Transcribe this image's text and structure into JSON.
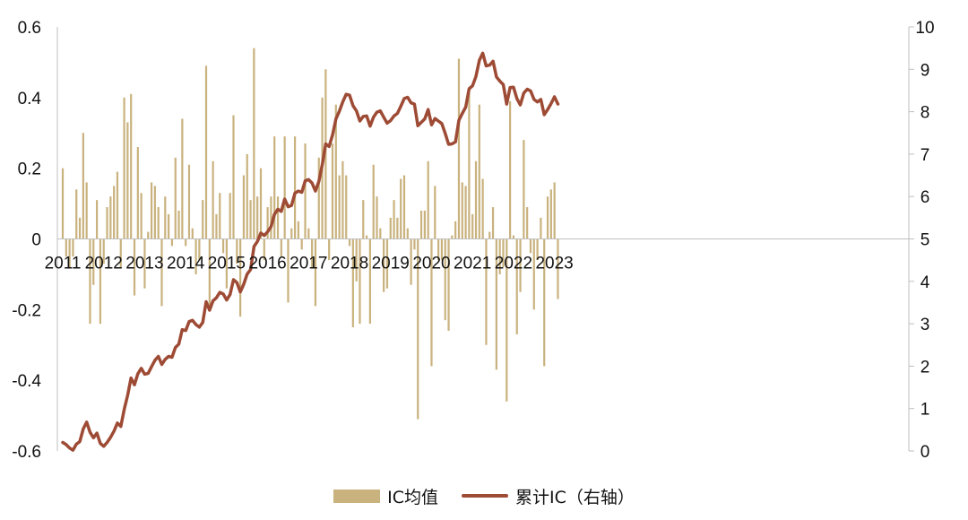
{
  "chart_data": {
    "type": "bar+line",
    "x_tick_labels": [
      "2011",
      "2012",
      "2013",
      "2014",
      "2015",
      "2016",
      "2017",
      "2018",
      "2019",
      "2020",
      "2021",
      "2022",
      "2023"
    ],
    "y_left": {
      "range": [
        -0.6,
        0.6
      ],
      "ticks": [
        "0.6",
        "0.4",
        "0.2",
        "0",
        "-0.2",
        "-0.4",
        "-0.6"
      ]
    },
    "y_right": {
      "range": [
        0,
        10
      ],
      "ticks": [
        "10",
        "9",
        "8",
        "7",
        "6",
        "5",
        "4",
        "3",
        "2",
        "1",
        "0"
      ]
    },
    "start_period": "2011-01",
    "legend_position": "bottom",
    "colors": {
      "bars": "#c9b27e",
      "line": "#9e4b35",
      "axis": "#bfbfbf"
    },
    "series": [
      {
        "name": "IC均值",
        "type": "bar",
        "axis": "left",
        "values": [
          0.2,
          -0.05,
          -0.08,
          -0.05,
          0.14,
          0.06,
          0.3,
          0.16,
          -0.24,
          -0.13,
          0.11,
          -0.24,
          -0.07,
          0.09,
          0.12,
          0.15,
          0.19,
          -0.08,
          0.4,
          0.33,
          0.41,
          -0.16,
          0.26,
          0.13,
          -0.14,
          0.02,
          0.16,
          0.15,
          0.09,
          -0.19,
          0.12,
          0.07,
          -0.02,
          0.23,
          0.08,
          0.34,
          -0.02,
          0.21,
          0.03,
          -0.1,
          -0.06,
          0.11,
          0.49,
          -0.2,
          0.22,
          0.07,
          0.13,
          -0.04,
          -0.14,
          0.13,
          0.35,
          -0.07,
          -0.22,
          0.18,
          0.24,
          0.11,
          0.54,
          0.12,
          0.2,
          -0.06,
          0.09,
          0.12,
          0.29,
          0.12,
          -0.05,
          0.29,
          -0.18,
          0.03,
          0.29,
          0.05,
          -0.03,
          0.27,
          0.03,
          -0.08,
          -0.19,
          0.23,
          0.4,
          0.48,
          -0.06,
          0.27,
          0.38,
          0.18,
          0.22,
          0.18,
          -0.02,
          -0.25,
          -0.12,
          -0.24,
          0.11,
          0.01,
          -0.24,
          0.21,
          0.12,
          0.03,
          -0.15,
          -0.14,
          0.06,
          0.11,
          0.06,
          0.17,
          0.18,
          0.03,
          -0.13,
          -0.03,
          -0.51,
          0.08,
          0.08,
          0.22,
          -0.36,
          0.15,
          -0.06,
          -0.06,
          -0.23,
          -0.26,
          0.01,
          0.05,
          0.51,
          0.16,
          0.15,
          0.43,
          0.07,
          0.22,
          0.38,
          0.17,
          -0.3,
          0.02,
          0.09,
          -0.37,
          -0.1,
          -0.08,
          -0.46,
          0.39,
          0.01,
          -0.27,
          -0.15,
          0.28,
          0.09,
          -0.04,
          -0.2,
          -0.06,
          0.06,
          -0.36,
          0.12,
          0.14,
          0.16,
          -0.17
        ]
      },
      {
        "name": "累计IC（右轴）",
        "type": "line",
        "axis": "right",
        "values": [
          0.2,
          0.15,
          0.07,
          0.02,
          0.16,
          0.22,
          0.52,
          0.68,
          0.44,
          0.31,
          0.42,
          0.18,
          0.11,
          0.2,
          0.32,
          0.47,
          0.66,
          0.58,
          0.98,
          1.31,
          1.72,
          1.56,
          1.82,
          1.95,
          1.81,
          1.83,
          1.99,
          2.14,
          2.23,
          2.04,
          2.16,
          2.23,
          2.21,
          2.44,
          2.52,
          2.86,
          2.84,
          3.05,
          3.08,
          2.98,
          2.92,
          3.03,
          3.52,
          3.32,
          3.54,
          3.61,
          3.74,
          3.7,
          3.56,
          3.69,
          4.04,
          3.97,
          3.75,
          3.93,
          4.17,
          4.28,
          4.82,
          4.94,
          5.14,
          5.08,
          5.17,
          5.29,
          5.58,
          5.7,
          5.65,
          5.94,
          5.76,
          5.79,
          6.08,
          6.13,
          6.1,
          6.37,
          6.4,
          6.32,
          6.13,
          6.36,
          6.76,
          7.24,
          7.18,
          7.45,
          7.83,
          8.01,
          8.23,
          8.41,
          8.39,
          8.14,
          8.02,
          7.78,
          7.89,
          7.9,
          7.66,
          7.87,
          7.99,
          8.02,
          7.87,
          7.73,
          7.79,
          7.9,
          7.96,
          8.13,
          8.31,
          8.34,
          8.21,
          8.18,
          7.67,
          7.75,
          7.83,
          8.05,
          7.69,
          7.84,
          7.78,
          7.72,
          7.49,
          7.23,
          7.24,
          7.29,
          7.8,
          7.96,
          8.11,
          8.54,
          8.61,
          8.83,
          9.21,
          9.38,
          9.08,
          9.1,
          9.19,
          8.82,
          8.72,
          8.64,
          8.18,
          8.57,
          8.58,
          8.31,
          8.16,
          8.44,
          8.53,
          8.49,
          8.29,
          8.23,
          8.29,
          7.93,
          8.05,
          8.19,
          8.35,
          8.18
        ]
      }
    ]
  },
  "legend": {
    "bar_label": "IC均值",
    "line_label": "累计IC（右轴）"
  }
}
